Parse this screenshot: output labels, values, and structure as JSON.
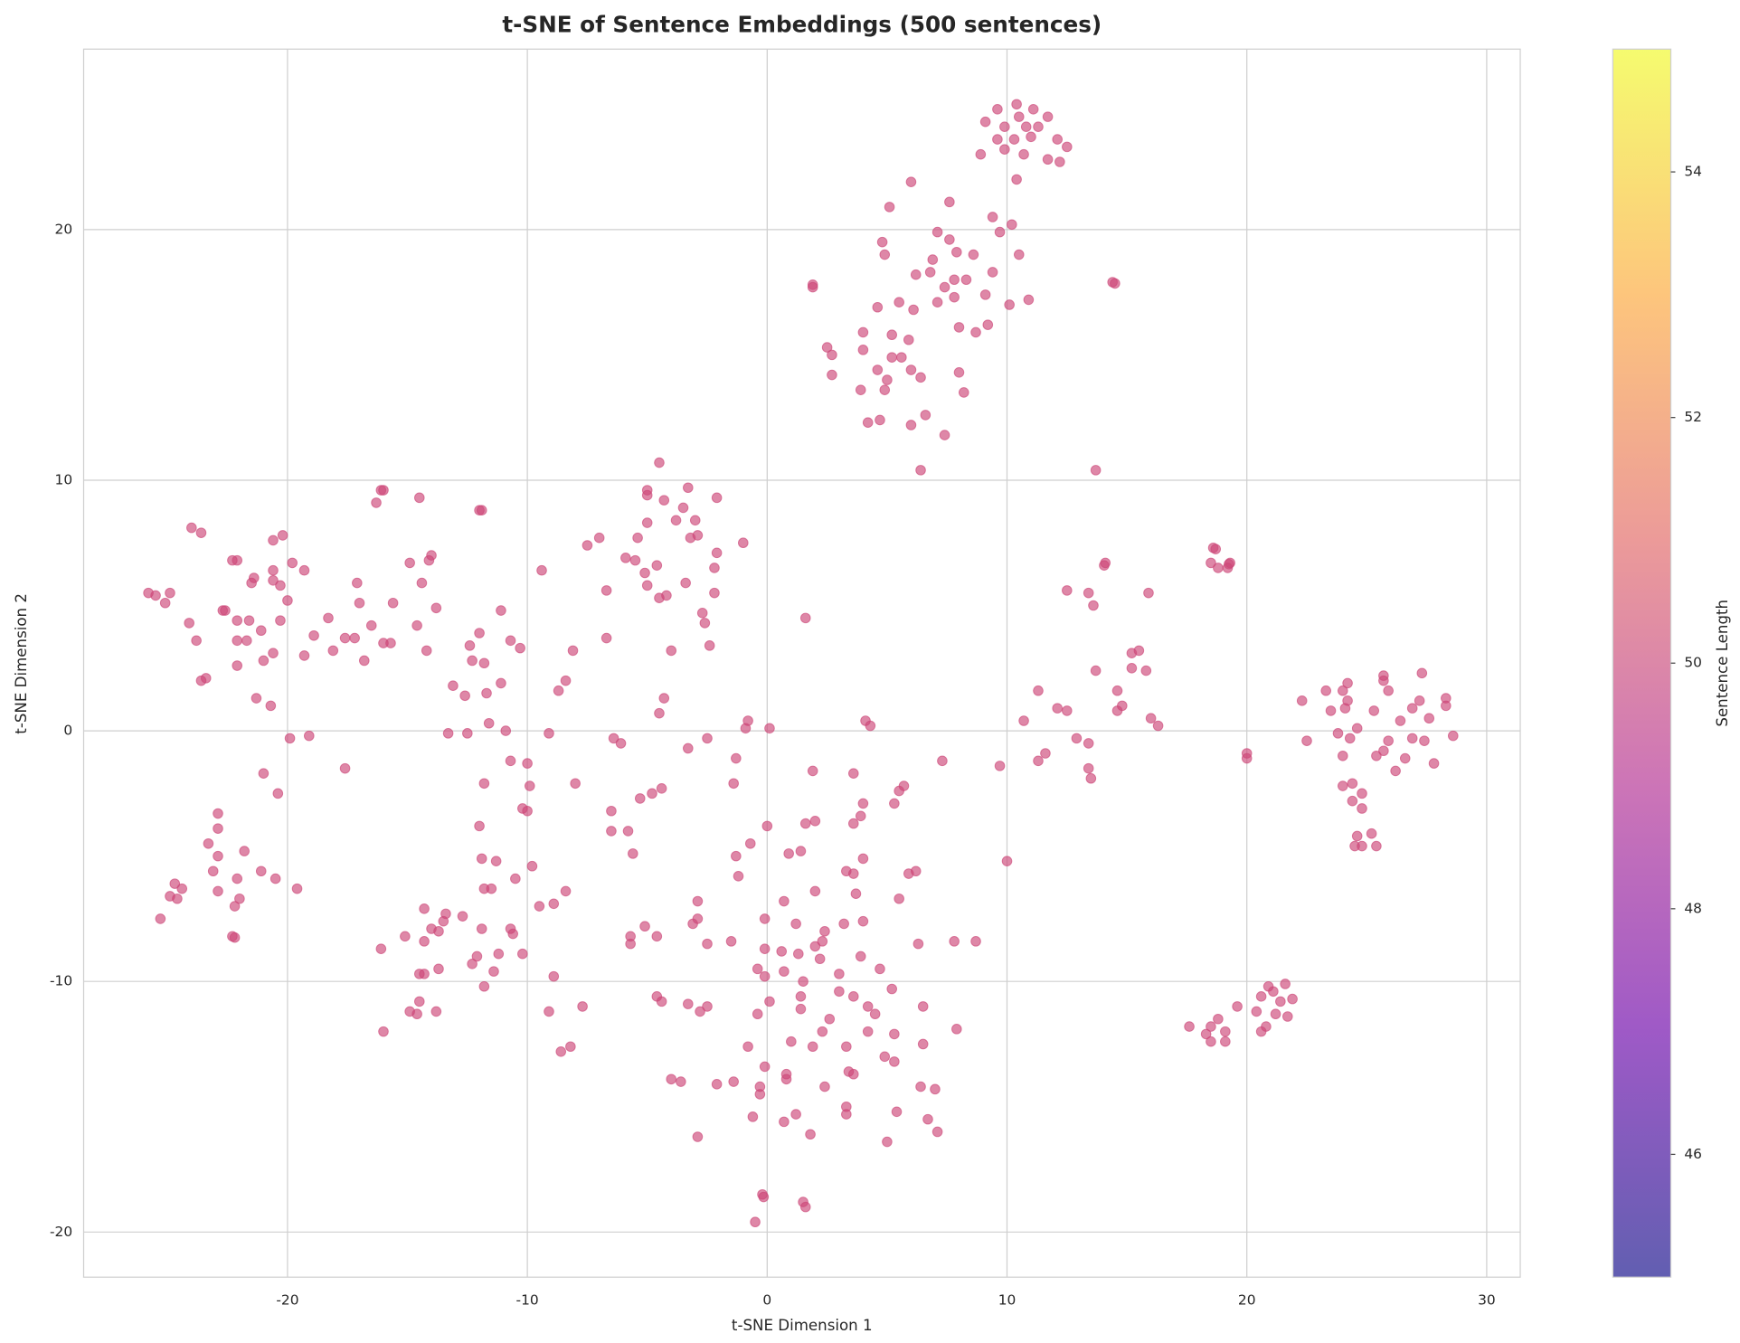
{
  "chart_data": {
    "type": "scatter",
    "title": "t-SNE of Sentence Embeddings (500 sentences)",
    "x_label": "t-SNE Dimension 1",
    "y_label": "t-SNE Dimension 2",
    "xlim": [
      -28.5,
      31.4
    ],
    "ylim": [
      -21.8,
      27.2
    ],
    "xticks": [
      -20,
      -10,
      0,
      10,
      20,
      30
    ],
    "yticks": [
      -20,
      -10,
      0,
      10,
      20
    ],
    "grid": true,
    "color": "#cc4778",
    "alpha": 0.65,
    "colorbar": {
      "label": "Sentence Length",
      "lim": [
        45,
        55
      ],
      "ticks": [
        46,
        48,
        50,
        52,
        54
      ],
      "colormap": "plasma"
    },
    "x": [
      10.4,
      9.6,
      11.1,
      11.7,
      9.1,
      9.9,
      10.5,
      10.8,
      11.3,
      10.3,
      11.0,
      9.6,
      12.1,
      12.5,
      9.9,
      10.7,
      8.9,
      11.7,
      12.2,
      10.4,
      6.0,
      5.1,
      7.6,
      9.4,
      10.2,
      7.1,
      7.6,
      4.8,
      9.7,
      4.9,
      7.9,
      8.6,
      10.5,
      6.9,
      9.4,
      6.8,
      6.2,
      7.8,
      8.3,
      7.4,
      1.9,
      1.9,
      14.4,
      14.5,
      9.1,
      7.8,
      5.5,
      7.1,
      10.9,
      10.1,
      4.6,
      6.1,
      8.0,
      9.2,
      8.7,
      4.0,
      5.2,
      5.9,
      2.5,
      2.7,
      4.0,
      5.2,
      5.6,
      4.6,
      6.0,
      8.0,
      2.7,
      6.4,
      5.0,
      3.9,
      4.9,
      8.2,
      6.6,
      4.7,
      4.2,
      6.0,
      7.4,
      6.4,
      13.7,
      -4.5,
      -3.3,
      -5.0,
      -5.0,
      -2.1,
      -4.3,
      -3.5,
      -3.8,
      -3.0,
      -5.0,
      -5.4,
      -2.9,
      -3.2,
      -7.0,
      -7.5,
      -1.0,
      -2.1,
      -5.9,
      -5.5,
      -4.6,
      -5.1,
      -2.2,
      -5.0,
      -3.4,
      -6.7,
      -2.2,
      -4.5,
      -4.2,
      -2.7,
      -2.6,
      -6.7,
      -2.4,
      -4.0,
      -4.3,
      -4.5,
      -0.8,
      -0.9,
      0.1,
      -6.4,
      -6.1,
      -2.5,
      -3.3,
      -1.3,
      -4.4,
      -4.8,
      -5.3,
      -1.4,
      -6.5,
      -6.5,
      -5.8,
      -0.7,
      -5.6,
      -1.3,
      -1.2,
      -12.0,
      -11.9,
      -9.4,
      -11.1,
      -12.0,
      -10.7,
      -10.3,
      -12.4,
      -8.1,
      -12.3,
      -11.8,
      -8.4,
      -11.1,
      -13.1,
      -8.7,
      -11.7,
      -12.6,
      -13.3,
      -12.5,
      -11.6,
      -10.9,
      -9.1,
      -10.7,
      -10.0,
      -11.8,
      -8.0,
      -9.9,
      -10.2,
      -10.0,
      -12.0,
      -11.9,
      -11.3,
      -9.8,
      -10.5,
      -11.8,
      -11.5,
      -8.4,
      -9.5,
      -8.9,
      -14.3,
      -13.4,
      -12.7,
      -13.5,
      -14.0,
      -13.7,
      -10.7,
      -10.6,
      -11.9,
      -15.1,
      -14.3,
      -16.1,
      -11.2,
      -10.2,
      -12.1,
      -12.3,
      -13.7,
      -11.4,
      -14.5,
      -14.3,
      -8.9,
      -11.8,
      -14.5,
      -14.9,
      -14.6,
      -13.8,
      -9.1,
      -7.7,
      -16.0,
      -8.2,
      -8.6,
      -16.0,
      -16.1,
      -14.5,
      -16.3,
      -14.0,
      -14.1,
      -14.9,
      -14.4,
      -17.1,
      -15.6,
      -13.8,
      -17.0,
      -18.3,
      -16.5,
      -14.6,
      -18.9,
      -17.6,
      -17.2,
      -16.0,
      -15.7,
      -18.1,
      -14.2,
      -16.8,
      -19.3,
      -19.1,
      -17.6,
      -19.9,
      -24.0,
      -23.6,
      -20.2,
      -20.6,
      -22.3,
      -22.1,
      -19.8,
      -20.6,
      -19.3,
      -21.4,
      -21.5,
      -20.6,
      -20.3,
      -25.8,
      -25.5,
      -24.9,
      -25.1,
      -20.0,
      -22.7,
      -22.6,
      -22.1,
      -21.6,
      -20.3,
      -24.1,
      -21.1,
      -23.8,
      -22.1,
      -21.7,
      -20.6,
      -21.0,
      -22.1,
      -23.4,
      -23.6,
      -21.3,
      -20.7,
      -21.0,
      -20.4,
      -22.9,
      -22.9,
      -23.3,
      -21.8,
      -22.9,
      -21.1,
      -20.5,
      -23.1,
      -22.1,
      -19.6,
      -24.7,
      -24.4,
      -22.9,
      -24.9,
      -24.6,
      -22.0,
      -22.2,
      -25.3,
      -22.3,
      -22.2,
      1.6,
      4.1,
      4.3,
      1.9,
      3.6,
      7.3,
      5.7,
      5.5,
      5.3,
      4.0,
      3.9,
      3.6,
      2.0,
      1.6,
      0.0,
      1.4,
      0.9,
      4.0,
      6.2,
      5.9,
      3.3,
      3.6,
      2.0,
      3.7,
      5.5,
      -2.9,
      0.7,
      -2.9,
      -0.1,
      1.2,
      4.0,
      3.2,
      -3.1,
      -5.1,
      2.4,
      2.3,
      -4.6,
      -1.5,
      -2.5,
      2.0,
      -5.7,
      -5.7,
      6.3,
      7.8,
      8.7,
      -0.1,
      0.6,
      1.3,
      2.2,
      3.9,
      -0.4,
      0.7,
      4.7,
      -0.1,
      3.0,
      1.5,
      3.0,
      5.2,
      3.6,
      1.4,
      -4.6,
      -4.4,
      0.1,
      -3.3,
      -2.5,
      4.2,
      6.5,
      1.4,
      4.5,
      -2.8,
      -0.4,
      2.6,
      2.3,
      4.2,
      5.3,
      7.9,
      1.0,
      -0.8,
      1.9,
      3.3,
      6.5,
      4.9,
      5.3,
      -0.1,
      0.8,
      0.8,
      3.4,
      3.6,
      -4.0,
      -3.6,
      -1.4,
      -2.1,
      2.4,
      -0.3,
      6.4,
      7.0,
      -0.3,
      3.3,
      3.3,
      1.2,
      5.4,
      -0.6,
      6.7,
      0.7,
      7.1,
      1.8,
      -2.9,
      5.0,
      -0.2,
      -0.15,
      1.5,
      1.6,
      -0.5,
      18.6,
      18.7,
      19.3,
      19.25,
      14.1,
      14.05,
      18.5,
      18.8,
      19.2,
      12.5,
      13.4,
      15.9,
      13.6,
      15.5,
      15.2,
      13.7,
      15.2,
      15.8,
      11.3,
      14.6,
      14.8,
      12.1,
      12.5,
      14.6,
      16.0,
      10.7,
      16.3,
      12.9,
      13.4,
      11.6,
      11.3,
      9.7,
      13.4,
      13.5,
      10.0,
      25.7,
      27.3,
      24.2,
      25.7,
      23.3,
      24.0,
      25.9,
      28.3,
      22.3,
      24.2,
      27.2,
      28.3,
      23.5,
      24.1,
      25.3,
      26.9,
      27.6,
      26.4,
      24.6,
      23.8,
      24.3,
      22.5,
      25.9,
      26.9,
      27.4,
      28.6,
      25.7,
      24.0,
      25.4,
      26.6,
      26.2,
      27.8,
      24.4,
      24.0,
      24.8,
      24.4,
      24.8,
      25.2,
      24.6,
      24.5,
      24.8,
      25.4,
      20.0,
      20.0,
      21.6,
      20.9,
      21.1,
      20.6,
      21.9,
      19.6,
      21.2,
      21.7,
      20.4,
      18.8,
      17.6,
      18.5,
      20.8,
      20.6,
      19.1,
      18.3,
      19.1,
      18.5,
      21.4
    ],
    "values": [
      25.0,
      24.8,
      24.8,
      24.5,
      24.3,
      24.1,
      24.5,
      24.1,
      24.1,
      23.6,
      23.7,
      23.6,
      23.6,
      23.3,
      23.2,
      23.0,
      23.0,
      22.8,
      22.7,
      22.0,
      21.9,
      20.9,
      21.1,
      20.5,
      20.2,
      19.9,
      19.6,
      19.5,
      19.9,
      19.0,
      19.1,
      19.0,
      19.0,
      18.8,
      18.3,
      18.3,
      18.2,
      18.0,
      18.0,
      17.7,
      17.8,
      17.7,
      17.9,
      17.85,
      17.4,
      17.3,
      17.1,
      17.1,
      17.2,
      17.0,
      16.9,
      16.8,
      16.1,
      16.2,
      15.9,
      15.9,
      15.8,
      15.6,
      15.3,
      15.0,
      15.2,
      14.9,
      14.9,
      14.4,
      14.4,
      14.3,
      14.2,
      14.1,
      14.0,
      13.6,
      13.6,
      13.5,
      12.6,
      12.4,
      12.3,
      12.2,
      11.8,
      10.4,
      10.4,
      10.7,
      9.7,
      9.6,
      9.4,
      9.3,
      9.2,
      8.9,
      8.4,
      8.4,
      8.3,
      7.7,
      7.8,
      7.7,
      7.7,
      7.4,
      7.5,
      7.1,
      6.9,
      6.8,
      6.6,
      6.3,
      6.5,
      5.8,
      5.9,
      5.6,
      5.5,
      5.3,
      5.4,
      4.7,
      4.3,
      3.7,
      3.4,
      3.2,
      1.3,
      0.7,
      0.4,
      0.1,
      0.1,
      -0.3,
      -0.5,
      -0.3,
      -0.7,
      -1.1,
      -2.3,
      -2.5,
      -2.7,
      -2.1,
      -3.2,
      -4.0,
      -4.0,
      -4.5,
      -4.9,
      -5.0,
      -5.8,
      8.8,
      8.8,
      6.4,
      4.8,
      3.9,
      3.6,
      3.3,
      3.4,
      3.2,
      2.8,
      2.7,
      2.0,
      1.9,
      1.8,
      1.6,
      1.5,
      1.4,
      -0.1,
      -0.1,
      0.3,
      0.0,
      -0.1,
      -1.2,
      -1.3,
      -2.1,
      -2.1,
      -2.2,
      -3.1,
      -3.2,
      -3.8,
      -5.1,
      -5.2,
      -5.4,
      -5.9,
      -6.3,
      -6.3,
      -6.4,
      -7.0,
      -6.9,
      -7.1,
      -7.3,
      -7.4,
      -7.6,
      -7.9,
      -8.0,
      -7.9,
      -8.1,
      -7.9,
      -8.2,
      -8.4,
      -8.7,
      -8.9,
      -8.9,
      -9.0,
      -9.3,
      -9.5,
      -9.6,
      -9.7,
      -9.7,
      -9.8,
      -10.2,
      -10.8,
      -11.2,
      -11.3,
      -11.2,
      -11.2,
      -11.0,
      -12.0,
      -12.6,
      -12.8,
      9.6,
      9.6,
      9.3,
      9.1,
      7.0,
      6.8,
      6.7,
      5.9,
      5.9,
      5.1,
      4.9,
      5.1,
      4.5,
      4.2,
      4.2,
      3.8,
      3.7,
      3.7,
      3.5,
      3.5,
      3.2,
      3.2,
      2.8,
      3.0,
      -0.2,
      -1.5,
      -0.3,
      8.1,
      7.9,
      7.8,
      7.6,
      6.8,
      6.8,
      6.7,
      6.4,
      6.4,
      6.1,
      5.9,
      6.0,
      5.8,
      5.5,
      5.4,
      5.5,
      5.1,
      5.2,
      4.8,
      4.8,
      4.4,
      4.4,
      4.4,
      4.3,
      4.0,
      3.6,
      3.6,
      3.6,
      3.1,
      2.8,
      2.6,
      2.1,
      2.0,
      1.3,
      1.0,
      -1.7,
      -2.5,
      -3.3,
      -3.9,
      -4.5,
      -4.8,
      -5.0,
      -5.6,
      -5.9,
      -5.6,
      -5.9,
      -6.3,
      -6.1,
      -6.3,
      -6.4,
      -6.6,
      -6.7,
      -6.7,
      -7.0,
      -7.5,
      -8.2,
      -8.25,
      4.5,
      0.4,
      0.2,
      -1.6,
      -1.7,
      -1.2,
      -2.2,
      -2.4,
      -2.9,
      -2.9,
      -3.4,
      -3.7,
      -3.6,
      -3.7,
      -3.8,
      -4.8,
      -4.9,
      -5.1,
      -5.6,
      -5.7,
      -5.6,
      -5.7,
      -6.4,
      -6.5,
      -6.7,
      -6.8,
      -6.8,
      -7.5,
      -7.5,
      -7.7,
      -7.6,
      -7.7,
      -7.7,
      -7.8,
      -8.0,
      -8.4,
      -8.2,
      -8.4,
      -8.5,
      -8.6,
      -8.2,
      -8.5,
      -8.5,
      -8.4,
      -8.4,
      -8.7,
      -8.8,
      -8.9,
      -9.1,
      -9.0,
      -9.5,
      -9.6,
      -9.5,
      -9.8,
      -9.7,
      -10.0,
      -10.4,
      -10.3,
      -10.6,
      -10.6,
      -10.6,
      -10.8,
      -10.8,
      -10.9,
      -11.0,
      -11.0,
      -11.0,
      -11.1,
      -11.3,
      -11.2,
      -11.3,
      -11.5,
      -12.0,
      -12.0,
      -12.1,
      -11.9,
      -12.4,
      -12.6,
      -12.6,
      -12.6,
      -12.5,
      -13.0,
      -13.2,
      -13.4,
      -13.7,
      -13.9,
      -13.6,
      -13.7,
      -13.9,
      -14.0,
      -14.0,
      -14.1,
      -14.2,
      -14.2,
      -14.2,
      -14.3,
      -14.5,
      -15.0,
      -15.3,
      -15.3,
      -15.2,
      -15.4,
      -15.5,
      -15.6,
      -16.0,
      -16.1,
      -16.2,
      -16.4,
      -18.5,
      -18.6,
      -18.8,
      -19.0,
      -19.6,
      7.3,
      7.25,
      6.7,
      6.65,
      6.7,
      6.6,
      6.7,
      6.5,
      6.5,
      5.6,
      5.5,
      5.5,
      5.0,
      3.2,
      3.1,
      2.4,
      2.5,
      2.4,
      1.6,
      1.6,
      1.0,
      0.9,
      0.8,
      0.8,
      0.5,
      0.4,
      0.2,
      -0.3,
      -0.5,
      -0.9,
      -1.2,
      -1.4,
      -1.5,
      -1.9,
      -5.2,
      2.2,
      2.3,
      1.9,
      2.0,
      1.6,
      1.6,
      1.6,
      1.3,
      1.2,
      1.2,
      1.2,
      1.0,
      0.8,
      0.9,
      0.8,
      0.9,
      0.5,
      0.4,
      0.1,
      -0.1,
      -0.3,
      -0.4,
      -0.4,
      -0.3,
      -0.4,
      -0.2,
      -0.8,
      -1.0,
      -1.0,
      -1.1,
      -1.6,
      -1.3,
      -2.1,
      -2.2,
      -2.5,
      -2.8,
      -3.1,
      -4.1,
      -4.2,
      -4.6,
      -4.6,
      -4.6,
      -0.9,
      -1.1,
      -10.1,
      -10.2,
      -10.4,
      -10.6,
      -10.7,
      -11.0,
      -11.3,
      -11.4,
      -11.2,
      -11.5,
      -11.8,
      -11.8,
      -11.8,
      -12.0,
      -12.0,
      -12.1,
      -12.4,
      -12.4,
      -10.8
    ]
  }
}
